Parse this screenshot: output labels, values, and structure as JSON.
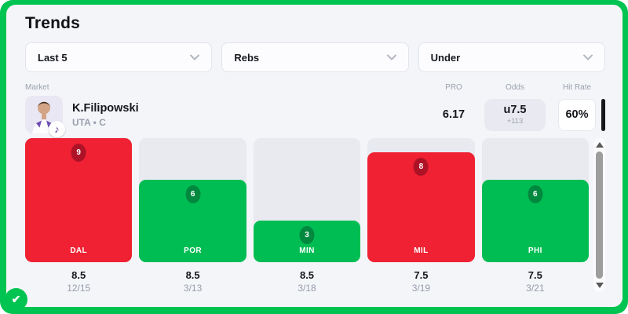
{
  "accent_color": "#00c451",
  "header": {
    "title": "Trends"
  },
  "filters": {
    "timeframe": "Last 5",
    "stat": "Rebs",
    "direction": "Under"
  },
  "table_headers": {
    "market": "Market",
    "pro": "PRO",
    "odds": "Odds",
    "hit_rate": "Hit Rate"
  },
  "player": {
    "name": "K.Filipowski",
    "team_position": "UTA • C",
    "pro": "6.17",
    "odds_line": "u7.5",
    "odds_price": "+113",
    "hit_rate": "60%"
  },
  "chart_data": {
    "type": "bar",
    "categories": [
      "DAL",
      "POR",
      "MIN",
      "MIL",
      "PHI"
    ],
    "values": [
      9,
      6,
      3,
      8,
      6
    ],
    "betting_lines": [
      "8.5",
      "8.5",
      "8.5",
      "7.5",
      "7.5"
    ],
    "dates": [
      "12/15",
      "3/13",
      "3/18",
      "3/19",
      "3/21"
    ],
    "results": [
      "over",
      "under",
      "under",
      "over",
      "under"
    ],
    "ylim": [
      0,
      9
    ],
    "grid": false,
    "colors": {
      "over": "#ef2133",
      "under": "#00bd53",
      "over_badge": "#ad1226",
      "under_badge": "#00883f",
      "track": "#e9e9f0"
    }
  },
  "icons": {
    "checkmark": "✔",
    "team_logo_note": "♪"
  }
}
